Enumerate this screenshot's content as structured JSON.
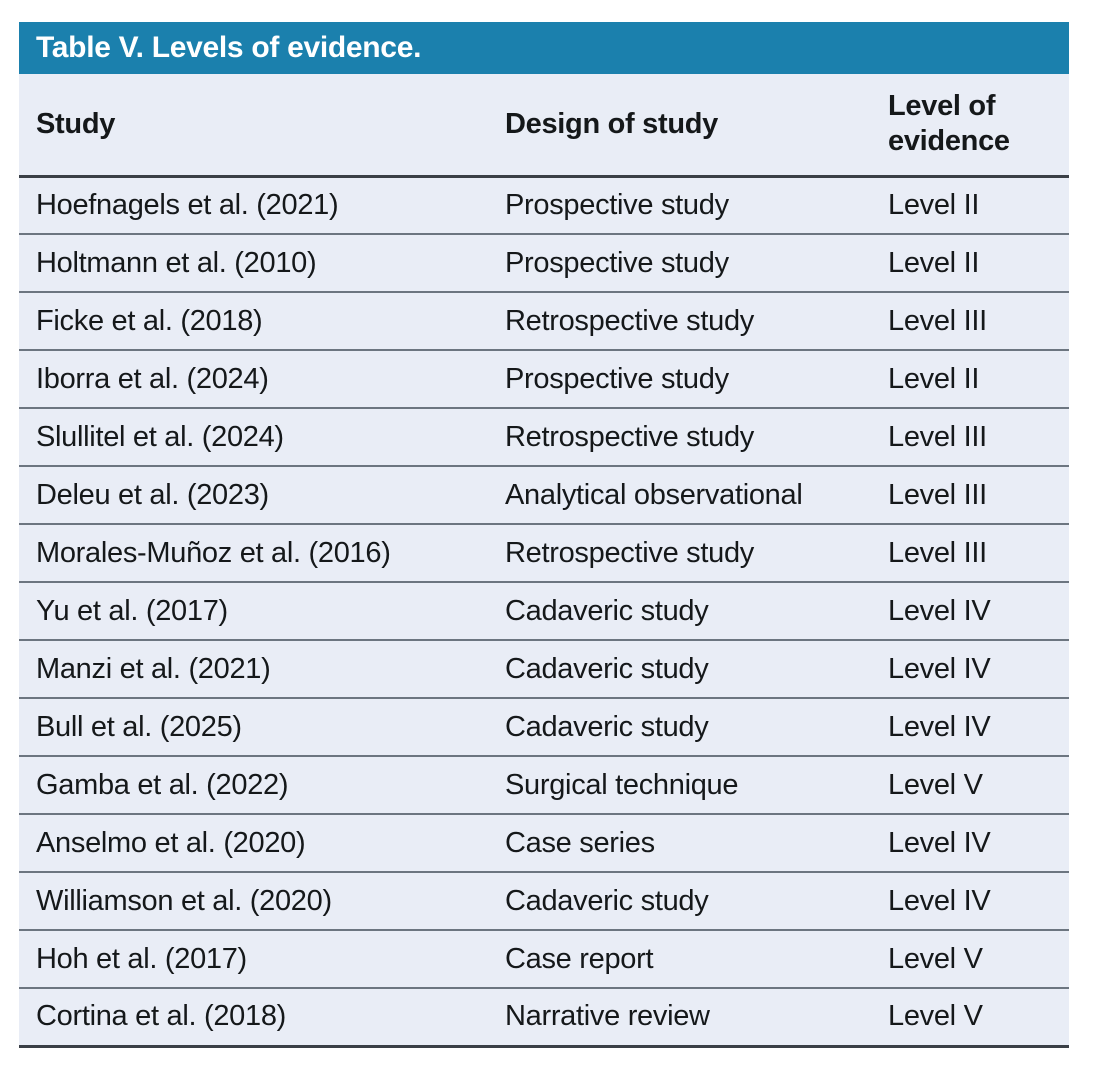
{
  "table": {
    "title": "Table V. Levels of evidence.",
    "columns": {
      "study": "Study",
      "design": "Design of study",
      "level": "Level of evidence"
    },
    "rows": [
      {
        "study": "Hoefnagels et al. (2021)",
        "design": "Prospective study",
        "level": "Level II"
      },
      {
        "study": "Holtmann et al. (2010)",
        "design": "Prospective study",
        "level": "Level II"
      },
      {
        "study": "Ficke et al. (2018)",
        "design": "Retrospective study",
        "level": "Level III"
      },
      {
        "study": "Iborra et al. (2024)",
        "design": "Prospective study",
        "level": "Level II"
      },
      {
        "study": "Slullitel et al. (2024)",
        "design": "Retrospective study",
        "level": "Level III"
      },
      {
        "study": "Deleu et al. (2023)",
        "design": "Analytical observational",
        "level": "Level III"
      },
      {
        "study": "Morales-Muñoz et al. (2016)",
        "design": "Retrospective study",
        "level": "Level III"
      },
      {
        "study": "Yu et al. (2017)",
        "design": "Cadaveric study",
        "level": "Level IV"
      },
      {
        "study": "Manzi et al. (2021)",
        "design": "Cadaveric study",
        "level": "Level IV"
      },
      {
        "study": "Bull et al. (2025)",
        "design": "Cadaveric study",
        "level": "Level IV"
      },
      {
        "study": "Gamba et al. (2022)",
        "design": "Surgical technique",
        "level": "Level V"
      },
      {
        "study": "Anselmo et al. (2020)",
        "design": "Case series",
        "level": "Level IV"
      },
      {
        "study": "Williamson et al. (2020)",
        "design": "Cadaveric study",
        "level": "Level IV"
      },
      {
        "study": "Hoh et al. (2017)",
        "design": "Case report",
        "level": "Level V"
      },
      {
        "study": "Cortina et al. (2018)",
        "design": "Narrative review",
        "level": "Level V"
      }
    ],
    "colors": {
      "title_bar": "#1b80ad",
      "title_text": "#ffffff",
      "row_background": "#e9edf6",
      "body_text": "#15181a",
      "header_divider": "#3a3f46",
      "row_divider": "#6c7580"
    }
  }
}
